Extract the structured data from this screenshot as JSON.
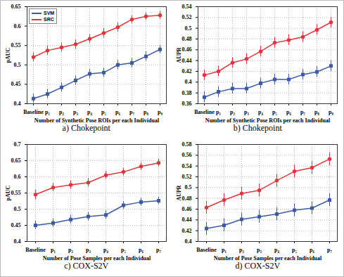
{
  "chart_data": [
    {
      "type": "line",
      "title": "a) Chokepoint",
      "x_label": "Number of Synthetic Pose ROIs per each Individual",
      "y_label": "pAUC",
      "categories": [
        "Baseline",
        "p₁",
        "p₂",
        "p₃",
        "p₄",
        "p₅",
        "p₆",
        "p₇",
        "p₈",
        "p₉"
      ],
      "series": [
        {
          "name": "SVM",
          "color": "#3c5aa6",
          "marker": "square",
          "line_style": "solid",
          "values": [
            0.413,
            0.425,
            0.442,
            0.46,
            0.477,
            0.48,
            0.5,
            0.505,
            0.522,
            0.54
          ],
          "errors": [
            0.012,
            0.012,
            0.012,
            0.012,
            0.012,
            0.012,
            0.012,
            0.012,
            0.012,
            0.01
          ]
        },
        {
          "name": "SRC",
          "color": "#e0363b",
          "marker": "circle",
          "line_style": "solid",
          "values": [
            0.52,
            0.537,
            0.545,
            0.553,
            0.567,
            0.582,
            0.597,
            0.617,
            0.625,
            0.628
          ],
          "errors": [
            0.012,
            0.012,
            0.012,
            0.012,
            0.012,
            0.012,
            0.012,
            0.01,
            0.01,
            0.01
          ]
        }
      ],
      "ylim": [
        0.4,
        0.65
      ],
      "yticks": [
        0.4,
        0.45,
        0.5,
        0.55,
        0.6,
        0.65
      ],
      "grid": true,
      "legend": "top-left"
    },
    {
      "type": "line",
      "title": "b) Chokepoint",
      "x_label": "Number of Synthetic Pose ROIs per each Individual",
      "y_label": "AUPR",
      "categories": [
        "Baseline",
        "p₁",
        "p₂",
        "p₃",
        "p₄",
        "p₅",
        "p₆",
        "p₇",
        "p₈",
        "p₉"
      ],
      "series": [
        {
          "name": "SVM",
          "color": "#3c5aa6",
          "marker": "square",
          "line_style": "solid",
          "values": [
            0.372,
            0.382,
            0.388,
            0.388,
            0.398,
            0.405,
            0.405,
            0.414,
            0.419,
            0.43
          ],
          "errors": [
            0.01,
            0.01,
            0.01,
            0.01,
            0.01,
            0.01,
            0.01,
            0.01,
            0.01,
            0.01
          ]
        },
        {
          "name": "SRC",
          "color": "#e0363b",
          "marker": "circle",
          "line_style": "solid",
          "values": [
            0.413,
            0.42,
            0.436,
            0.443,
            0.457,
            0.473,
            0.478,
            0.484,
            0.497,
            0.511
          ],
          "errors": [
            0.01,
            0.01,
            0.01,
            0.01,
            0.01,
            0.01,
            0.01,
            0.01,
            0.01,
            0.01
          ]
        }
      ],
      "ylim": [
        0.36,
        0.54
      ],
      "yticks": [
        0.36,
        0.38,
        0.4,
        0.42,
        0.44,
        0.46,
        0.48,
        0.5,
        0.52,
        0.54
      ],
      "grid": true
    },
    {
      "type": "line",
      "title": "c) COX-S2V",
      "x_label": "Number of Pose Samples per each Individual",
      "y_label": "pAUC",
      "categories": [
        "Baseline",
        "p₁",
        "p₂",
        "p₃",
        "p₄",
        "p₅",
        "p₆",
        "p₇"
      ],
      "series": [
        {
          "name": "SVM",
          "color": "#3c5aa6",
          "marker": "square",
          "line_style": "solid",
          "values": [
            0.45,
            0.457,
            0.468,
            0.477,
            0.482,
            0.512,
            0.522,
            0.526
          ],
          "errors": [
            0.013,
            0.013,
            0.013,
            0.013,
            0.013,
            0.012,
            0.012,
            0.012
          ]
        },
        {
          "name": "SRC",
          "color": "#e0363b",
          "marker": "circle",
          "line_style": "solid",
          "values": [
            0.545,
            0.567,
            0.575,
            0.582,
            0.605,
            0.615,
            0.632,
            0.643
          ],
          "errors": [
            0.015,
            0.013,
            0.013,
            0.013,
            0.012,
            0.012,
            0.012,
            0.012
          ]
        }
      ],
      "ylim": [
        0.4,
        0.7
      ],
      "yticks": [
        0.4,
        0.45,
        0.5,
        0.55,
        0.6,
        0.65,
        0.7
      ],
      "grid": true
    },
    {
      "type": "line",
      "title": "d) COX-S2V",
      "x_label": "Number of Pose Samples per each Individual",
      "y_label": "AUPR",
      "categories": [
        "Baseline",
        "p₁",
        "p₂",
        "p₃",
        "p₄",
        "p₅",
        "p₆",
        "p₇"
      ],
      "series": [
        {
          "name": "SVM",
          "color": "#3c5aa6",
          "marker": "square",
          "line_style": "solid",
          "values": [
            0.424,
            0.43,
            0.441,
            0.446,
            0.451,
            0.458,
            0.462,
            0.477
          ],
          "errors": [
            0.012,
            0.012,
            0.012,
            0.012,
            0.012,
            0.012,
            0.012,
            0.012
          ]
        },
        {
          "name": "SRC",
          "color": "#e0363b",
          "marker": "circle",
          "line_style": "solid",
          "values": [
            0.463,
            0.477,
            0.489,
            0.495,
            0.513,
            0.53,
            0.537,
            0.553
          ],
          "errors": [
            0.012,
            0.012,
            0.012,
            0.012,
            0.012,
            0.012,
            0.012,
            0.012
          ]
        }
      ],
      "ylim": [
        0.4,
        0.58
      ],
      "yticks": [
        0.4,
        0.42,
        0.44,
        0.46,
        0.48,
        0.5,
        0.52,
        0.54,
        0.56,
        0.58
      ],
      "grid": true
    }
  ]
}
